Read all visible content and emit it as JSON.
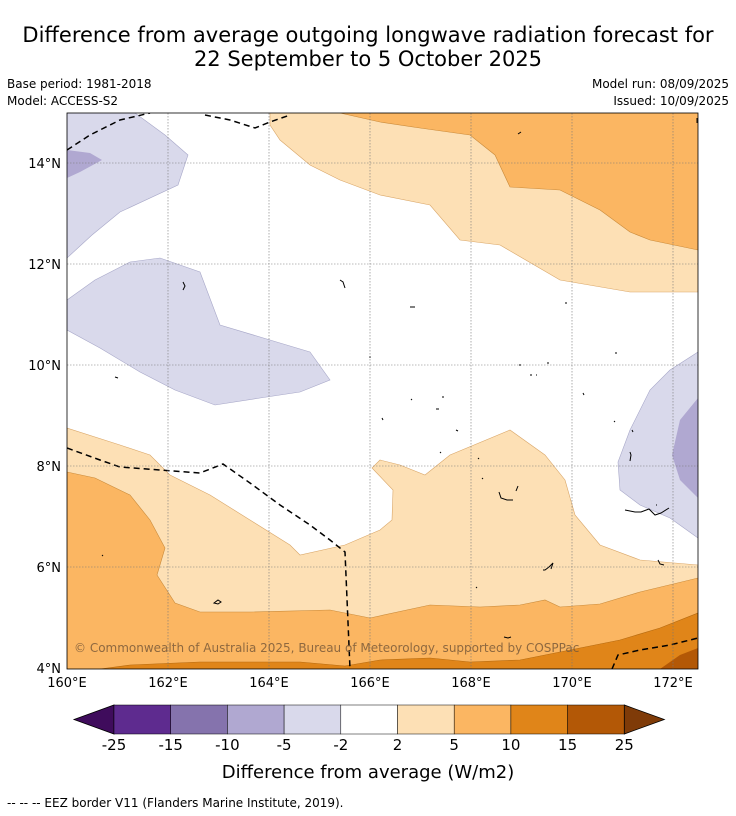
{
  "header": {
    "title_line1": "Difference from average outgoing longwave radiation forecast for",
    "title_line2": "22 September to 5 October 2025",
    "base_period": "Base period: 1981-2018",
    "model": "Model: ACCESS-S2",
    "model_run": "Model run: 08/09/2025",
    "issued": "Issued: 10/09/2025"
  },
  "map": {
    "lon_labels": [
      "160°E",
      "162°E",
      "164°E",
      "166°E",
      "168°E",
      "170°E",
      "172°E"
    ],
    "lat_labels": [
      "14°N",
      "12°N",
      "10°N",
      "8°N",
      "6°N",
      "4°N"
    ],
    "copyright": "© Commonwealth of Australia 2025, Bureau of Meteorology, supported by COSPPac"
  },
  "colorbar": {
    "ticks": [
      "-25",
      "-15",
      "-10",
      "-5",
      "-2",
      "2",
      "5",
      "10",
      "15",
      "25"
    ],
    "colors": [
      "#3f0c5c",
      "#5e2b8f",
      "#8573ad",
      "#b0a8d1",
      "#d9d9eb",
      "#ffffff",
      "#fde0b5",
      "#fbb662",
      "#e08519",
      "#b35806",
      "#7f3b08"
    ],
    "title": "Difference from average (W/m2)"
  },
  "footer": {
    "legend_text": "--  --  -- EEZ border V11 (Flanders Marine Institute, 2019)."
  }
}
